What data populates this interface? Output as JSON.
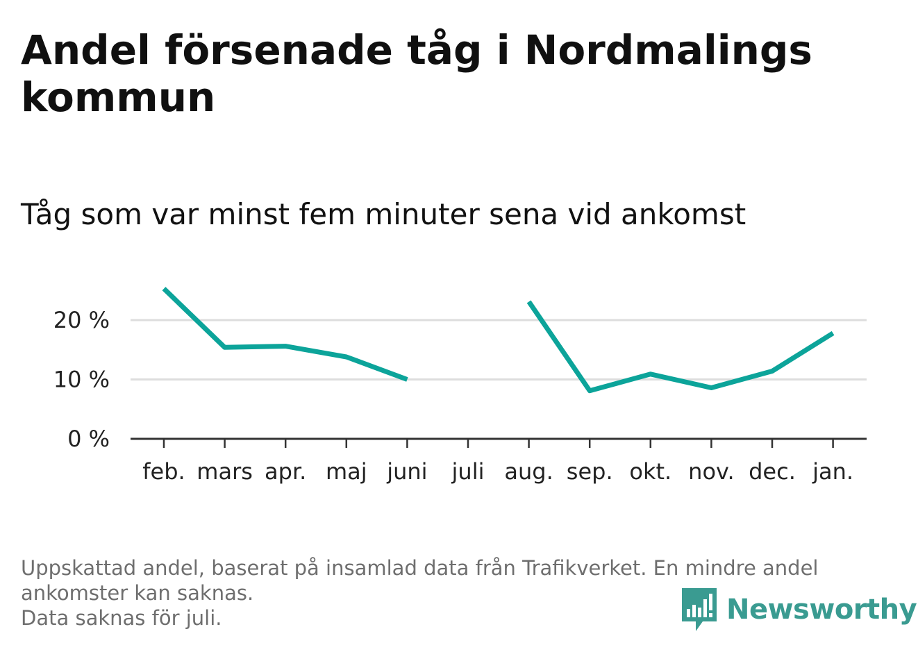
{
  "title": "Andel försenade tåg i Nordmalings kommun",
  "subtitle": "Tåg som var minst fem minuter sena vid ankomst",
  "footnote": {
    "lines": [
      "Uppskattad andel, baserat på insamlad data från Trafikverket. En mindre andel",
      "ankomster kan saknas.",
      "Data saknas för juli."
    ]
  },
  "brand": {
    "name": "Newsworthy",
    "icon": "newsworthy-logo-icon",
    "color": "#3a9b91"
  },
  "chart_data": {
    "type": "line",
    "title": "Andel försenade tåg i Nordmalings kommun",
    "subtitle": "Tåg som var minst fem minuter sena vid ankomst",
    "categories": [
      "feb.",
      "mars",
      "apr.",
      "maj",
      "juni",
      "juli",
      "aug.",
      "sep.",
      "okt.",
      "nov.",
      "dec.",
      "jan."
    ],
    "series": [
      {
        "values": [
          25.3,
          15.4,
          15.6,
          13.8,
          10.0,
          null,
          23.1,
          8.1,
          10.9,
          8.6,
          11.4,
          17.8
        ],
        "color": "#0ca49a"
      }
    ],
    "yticks": [
      0,
      10,
      20
    ],
    "ytick_labels": [
      "0 %",
      "10 %",
      "20 %"
    ],
    "ylim": [
      0,
      26
    ],
    "grid": true,
    "gridline_color": "#dddddd",
    "axis_color": "#333333",
    "legend": "none"
  }
}
